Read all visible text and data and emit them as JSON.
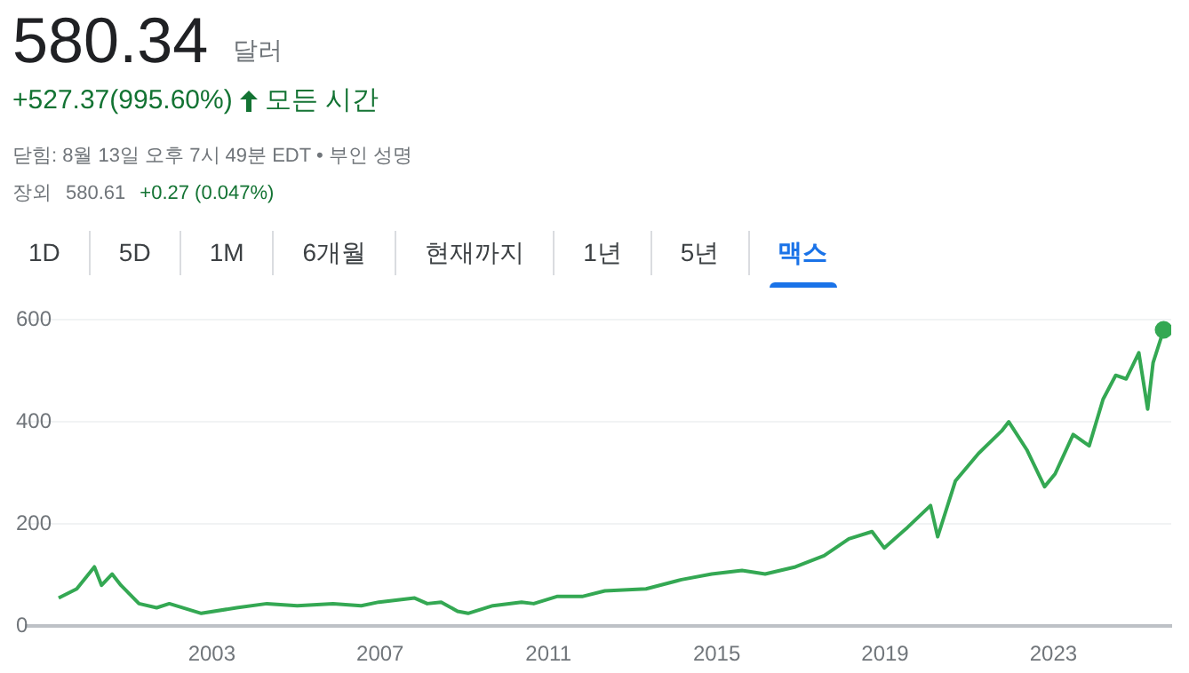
{
  "chart_data": {
    "type": "line",
    "title": "580.34",
    "subtitle": "달러",
    "annotations": [
      "+527.37(995.60%)",
      "모든 시간",
      "닫힘: 8월 13일 오후 7시 49분 EDT • 부인 성명",
      "장외",
      "580.61",
      "+0.27 (0.047%)",
      "1D",
      "5D",
      "1M",
      "6개월",
      "현재까지",
      "1년",
      "5년",
      "맥스"
    ],
    "x": [
      1999.36,
      1999.79,
      2000.21,
      2000.38,
      2000.63,
      2000.84,
      2001.27,
      2001.69,
      2001.99,
      2002.75,
      2003.59,
      2004.31,
      2005.03,
      2005.88,
      2006.55,
      2006.97,
      2007.82,
      2008.12,
      2008.45,
      2008.84,
      2009.09,
      2009.68,
      2010.36,
      2010.65,
      2011.2,
      2011.8,
      2012.34,
      2013.32,
      2014.16,
      2014.88,
      2015.6,
      2016.15,
      2016.87,
      2017.55,
      2018.14,
      2018.69,
      2018.98,
      2019.53,
      2020.08,
      2020.25,
      2020.67,
      2021.22,
      2021.77,
      2021.94,
      2022.37,
      2022.79,
      2023.04,
      2023.47,
      2023.85,
      2024.18,
      2024.48,
      2024.73,
      2025.03,
      2025.24,
      2025.37,
      2025.62
    ],
    "series": [
      {
        "color": "#34a853",
        "values": [
          55,
          73,
          116,
          80,
          102,
          80,
          44,
          36,
          44,
          25,
          36,
          44,
          40,
          44,
          40,
          47,
          55,
          44,
          47,
          29,
          25,
          40,
          47,
          44,
          58,
          58,
          69,
          73,
          91,
          102,
          109,
          102,
          116,
          138,
          171,
          185,
          153,
          193,
          236,
          175,
          284,
          338,
          382,
          400,
          345,
          273,
          298,
          375,
          353,
          444,
          491,
          484,
          535,
          425,
          516,
          580
        ]
      }
    ],
    "xlim": [
      1998.6,
      2025.8
    ],
    "xticks": [
      2003,
      2007,
      2011,
      2015,
      2019,
      2023
    ],
    "ylim": [
      0,
      600
    ],
    "yticks": [
      0,
      200,
      400,
      600
    ],
    "grid": "y",
    "legend": false,
    "marker": "none",
    "line_style": "solid"
  }
}
